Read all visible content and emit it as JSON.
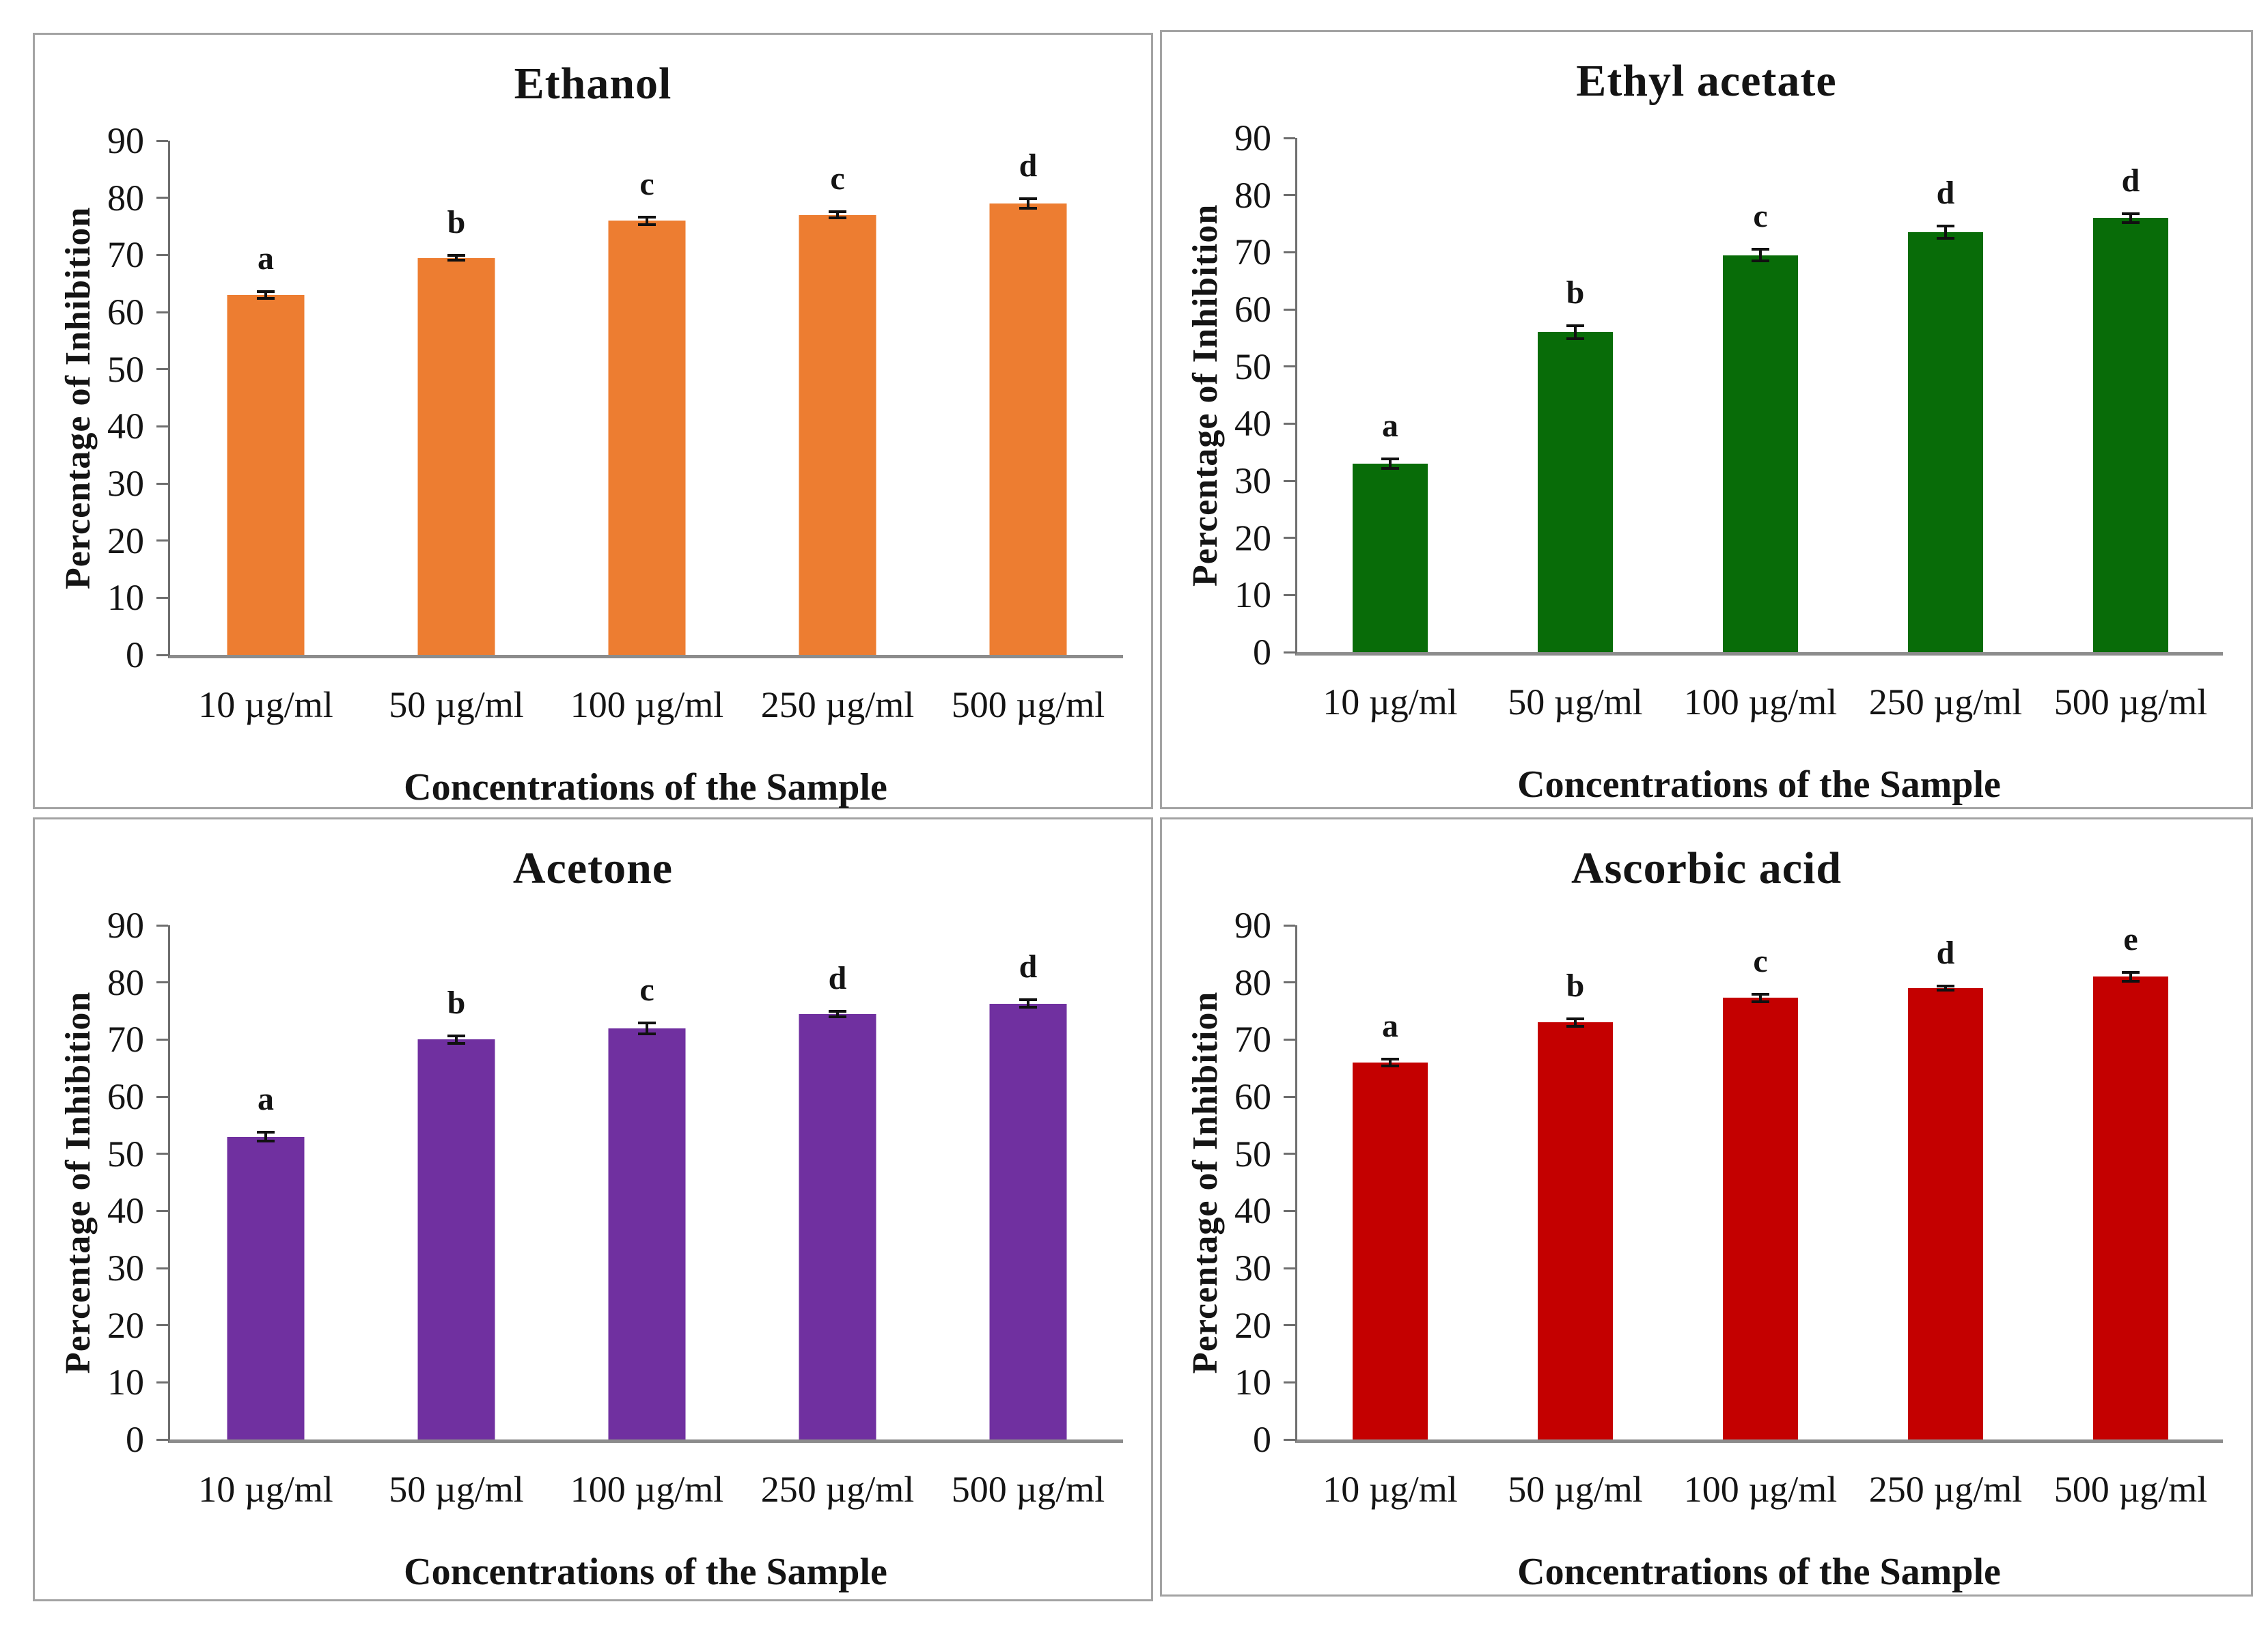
{
  "figure": {
    "ylabel": "Percentage of Inhibition",
    "xlabel": "Concentrations of the Sample"
  },
  "chart_data": [
    {
      "type": "bar",
      "title": "Ethanol",
      "color": "#ED7D31",
      "categories": [
        "10 µg/ml",
        "50 µg/ml",
        "100 µg/ml",
        "250 µg/ml",
        "500 µg/ml"
      ],
      "values": [
        63,
        69.5,
        76,
        77,
        79
      ],
      "errors": [
        0.8,
        0.7,
        0.9,
        0.8,
        1.1
      ],
      "letters": [
        "a",
        "b",
        "c",
        "c",
        "d"
      ],
      "xlabel": "Concentrations of the Sample",
      "ylabel": "Percentage of Inhibition",
      "ylim": [
        0,
        90
      ],
      "yticks": [
        0,
        10,
        20,
        30,
        40,
        50,
        60,
        70,
        80,
        90
      ],
      "grid": false,
      "legend": "none"
    },
    {
      "type": "bar",
      "title": "Ethyl acetate",
      "color": "#086C08",
      "categories": [
        "10 µg/ml",
        "50 µg/ml",
        "100 µg/ml",
        "250 µg/ml",
        "500 µg/ml"
      ],
      "values": [
        33,
        56,
        69.5,
        73.5,
        76
      ],
      "errors": [
        1.1,
        1.4,
        1.2,
        1.3,
        1.0
      ],
      "letters": [
        "a",
        "b",
        "c",
        "d",
        "d"
      ],
      "xlabel": "Concentrations of the Sample",
      "ylabel": "Percentage of Inhibition",
      "ylim": [
        0,
        90
      ],
      "yticks": [
        0,
        10,
        20,
        30,
        40,
        50,
        60,
        70,
        80,
        90
      ],
      "grid": false,
      "legend": "none"
    },
    {
      "type": "bar",
      "title": "Acetone",
      "color": "#7030A0",
      "categories": [
        "10 µg/ml",
        "50 µg/ml",
        "100 µg/ml",
        "250 µg/ml",
        "500 µg/ml"
      ],
      "values": [
        53,
        70,
        72,
        74.5,
        76.3
      ],
      "errors": [
        1.0,
        0.9,
        1.2,
        0.7,
        0.9
      ],
      "letters": [
        "a",
        "b",
        "c",
        "d",
        "d"
      ],
      "xlabel": "Concentrations of the Sample",
      "ylabel": "Percentage of Inhibition",
      "ylim": [
        0,
        90
      ],
      "yticks": [
        0,
        10,
        20,
        30,
        40,
        50,
        60,
        70,
        80,
        90
      ],
      "grid": false,
      "legend": "none"
    },
    {
      "type": "bar",
      "title": "Ascorbic acid",
      "color": "#C40000",
      "categories": [
        "10 µg/ml",
        "50 µg/ml",
        "100 µg/ml",
        "250 µg/ml",
        "500 µg/ml"
      ],
      "values": [
        66,
        73,
        77.3,
        79,
        81
      ],
      "errors": [
        0.8,
        0.9,
        0.9,
        0.6,
        1.0
      ],
      "letters": [
        "a",
        "b",
        "c",
        "d",
        "e"
      ],
      "xlabel": "Concentrations of the Sample",
      "ylabel": "Percentage of Inhibition",
      "ylim": [
        0,
        90
      ],
      "yticks": [
        0,
        10,
        20,
        30,
        40,
        50,
        60,
        70,
        80,
        90
      ],
      "grid": false,
      "legend": "none"
    }
  ]
}
